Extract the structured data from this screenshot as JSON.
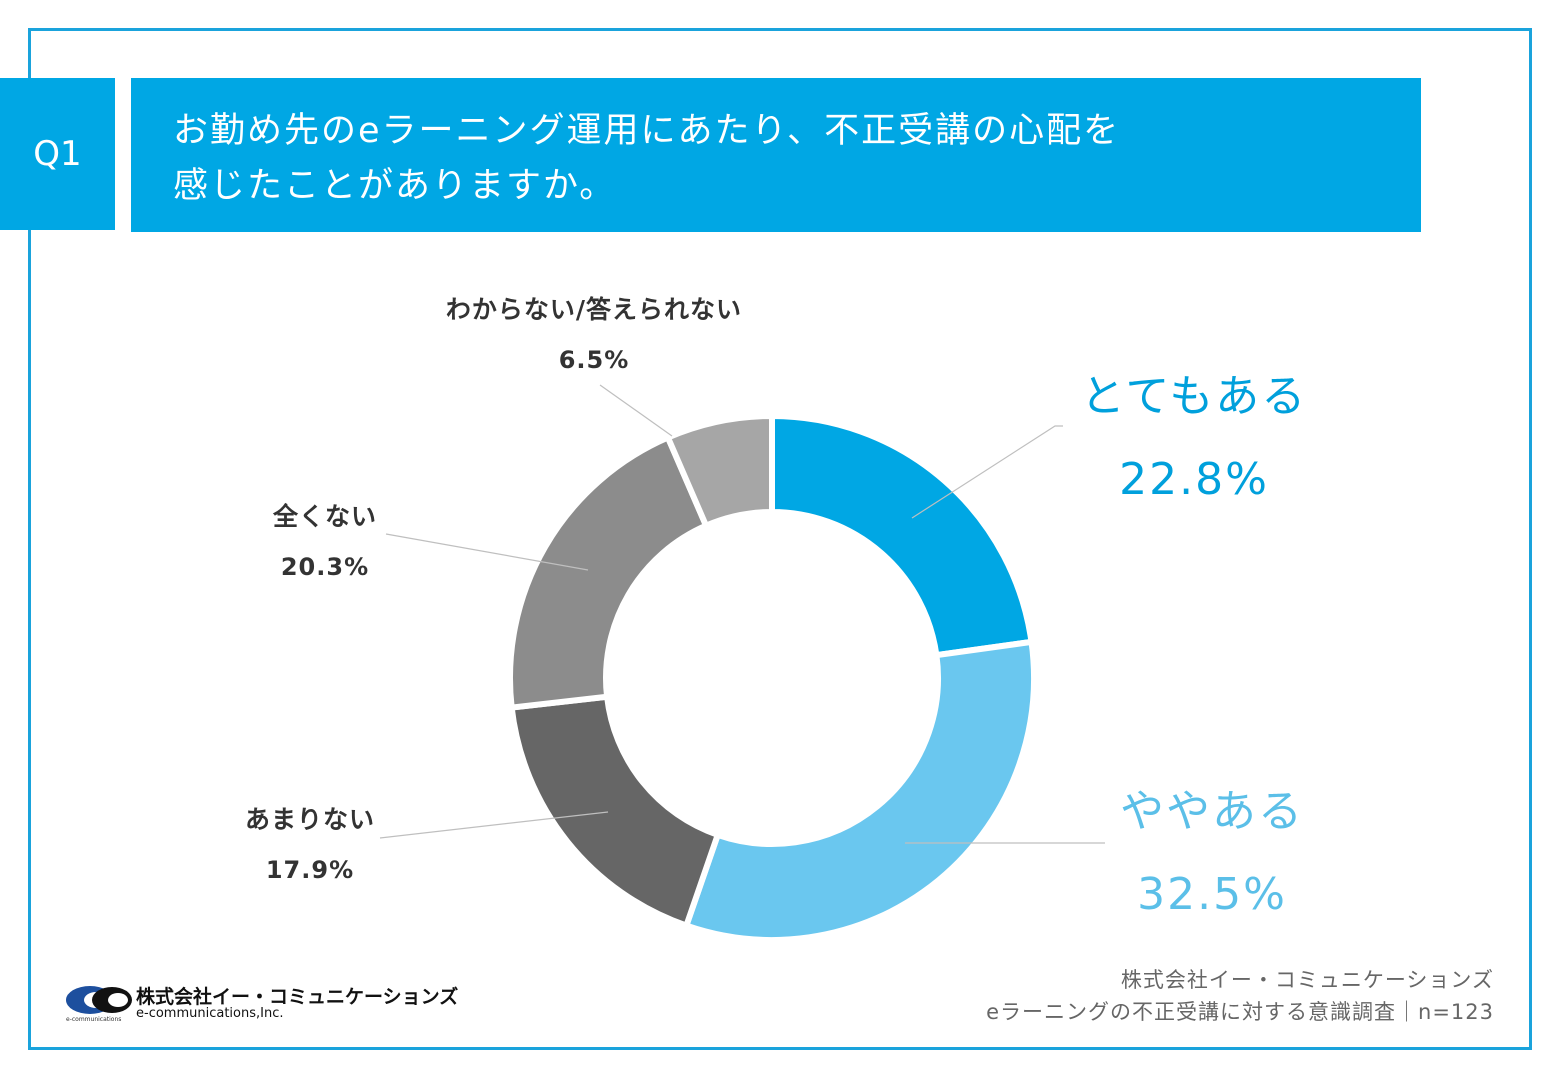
{
  "question": {
    "badge": "Q1",
    "title_line1": "お勤め先のeラーニング運用にあたり、不正受講の心配を",
    "title_line2": "感じたことがありますか。"
  },
  "chart_data": {
    "type": "pie",
    "variant": "donut",
    "categories": [
      "とてもある",
      "ややある",
      "あまりない",
      "全くない",
      "わからない/答えられない"
    ],
    "values": [
      22.8,
      32.5,
      17.9,
      20.3,
      6.5
    ],
    "value_labels": [
      "22.8%",
      "32.5%",
      "17.9%",
      "20.3%",
      "6.5%"
    ],
    "colors": [
      "#00a7e4",
      "#6ac7ef",
      "#666666",
      "#8c8c8c",
      "#a6a6a6"
    ]
  },
  "footer": {
    "company": "株式会社イー・コミュニケーションズ",
    "survey": "eラーニングの不正受講に対する意識調査｜n=123"
  },
  "logo": {
    "jp": "株式会社イー・コミュニケーションズ",
    "en": "e-communications,Inc.",
    "tiny": "e-communications"
  }
}
